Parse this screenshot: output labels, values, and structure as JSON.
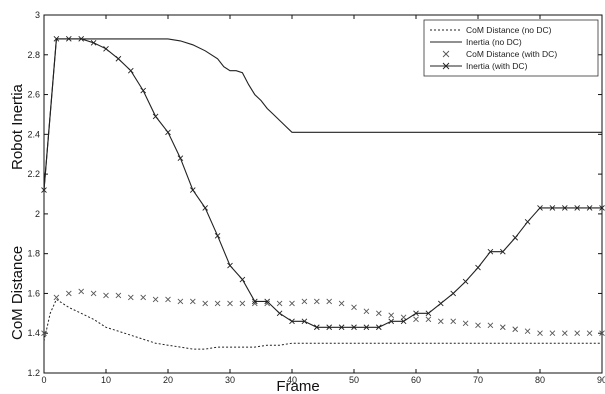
{
  "chart_data": {
    "type": "line",
    "title": "",
    "xlabel": "Frame",
    "ylabels": [
      "Robot Inertia",
      "CoM Distance"
    ],
    "xlim": [
      0,
      90
    ],
    "ylim": [
      1.2,
      3
    ],
    "xticks": [
      "0",
      "10",
      "20",
      "30",
      "40",
      "50",
      "60",
      "70",
      "80",
      "90"
    ],
    "yticks": [
      "1.2",
      "1.4",
      "1.6",
      "1.8",
      "2",
      "2.2",
      "2.4",
      "2.6",
      "2.8",
      "3"
    ],
    "grid": false,
    "legend_position": "top-right",
    "series": [
      {
        "name": "CoM Distance (no DC)",
        "style": "dotted",
        "color": "#222222",
        "x": [
          0,
          1,
          2,
          3,
          4,
          6,
          8,
          10,
          12,
          14,
          16,
          18,
          20,
          22,
          24,
          26,
          28,
          30,
          32,
          34,
          36,
          38,
          40,
          45,
          50,
          60,
          70,
          80,
          90
        ],
        "y": [
          1.36,
          1.5,
          1.57,
          1.55,
          1.53,
          1.5,
          1.47,
          1.43,
          1.41,
          1.39,
          1.37,
          1.35,
          1.34,
          1.33,
          1.32,
          1.32,
          1.33,
          1.33,
          1.33,
          1.33,
          1.34,
          1.34,
          1.35,
          1.35,
          1.35,
          1.35,
          1.35,
          1.35,
          1.35
        ]
      },
      {
        "name": "Inertia (no DC)",
        "style": "solid",
        "color": "#222222",
        "x": [
          0,
          1,
          2,
          5,
          10,
          15,
          20,
          22,
          24,
          26,
          28,
          29,
          30,
          31,
          32,
          33,
          34,
          35,
          36,
          37,
          38,
          39,
          40,
          50,
          60,
          70,
          80,
          90
        ],
        "y": [
          2.12,
          2.5,
          2.88,
          2.88,
          2.88,
          2.88,
          2.88,
          2.87,
          2.85,
          2.82,
          2.78,
          2.74,
          2.72,
          2.72,
          2.71,
          2.65,
          2.6,
          2.57,
          2.53,
          2.5,
          2.47,
          2.44,
          2.41,
          2.41,
          2.41,
          2.41,
          2.41,
          2.41
        ]
      },
      {
        "name": "CoM Distance (with DC)",
        "style": "markers",
        "color": "#555555",
        "x": [
          0,
          2,
          4,
          6,
          8,
          10,
          12,
          14,
          16,
          18,
          20,
          22,
          24,
          26,
          28,
          30,
          32,
          34,
          36,
          38,
          40,
          42,
          44,
          46,
          48,
          50,
          52,
          54,
          56,
          58,
          60,
          62,
          64,
          66,
          68,
          70,
          72,
          74,
          76,
          78,
          80,
          82,
          84,
          86,
          88,
          90
        ],
        "y": [
          1.4,
          1.58,
          1.6,
          1.61,
          1.6,
          1.59,
          1.59,
          1.58,
          1.58,
          1.57,
          1.57,
          1.56,
          1.56,
          1.55,
          1.55,
          1.55,
          1.55,
          1.55,
          1.55,
          1.55,
          1.55,
          1.56,
          1.56,
          1.56,
          1.55,
          1.53,
          1.51,
          1.5,
          1.49,
          1.48,
          1.47,
          1.47,
          1.46,
          1.46,
          1.45,
          1.44,
          1.44,
          1.43,
          1.42,
          1.41,
          1.4,
          1.4,
          1.4,
          1.4,
          1.4,
          1.4
        ]
      },
      {
        "name": "Inertia (with DC)",
        "style": "solid-x",
        "color": "#222222",
        "x": [
          0,
          1,
          2,
          4,
          6,
          8,
          10,
          12,
          14,
          16,
          18,
          20,
          22,
          24,
          26,
          28,
          30,
          32,
          34,
          36,
          38,
          40,
          42,
          44,
          46,
          48,
          50,
          52,
          54,
          56,
          58,
          60,
          62,
          64,
          66,
          68,
          70,
          72,
          74,
          76,
          78,
          80,
          82,
          84,
          86,
          88,
          90
        ],
        "y": [
          2.12,
          2.5,
          2.88,
          2.88,
          2.88,
          2.86,
          2.83,
          2.78,
          2.72,
          2.62,
          2.49,
          2.41,
          2.28,
          2.12,
          2.03,
          1.89,
          1.74,
          1.67,
          1.56,
          1.56,
          1.5,
          1.46,
          1.46,
          1.43,
          1.43,
          1.43,
          1.43,
          1.43,
          1.43,
          1.46,
          1.46,
          1.5,
          1.5,
          1.55,
          1.6,
          1.66,
          1.73,
          1.81,
          1.81,
          1.88,
          1.96,
          2.03,
          2.03,
          2.03,
          2.03,
          2.03,
          2.03
        ]
      }
    ]
  }
}
